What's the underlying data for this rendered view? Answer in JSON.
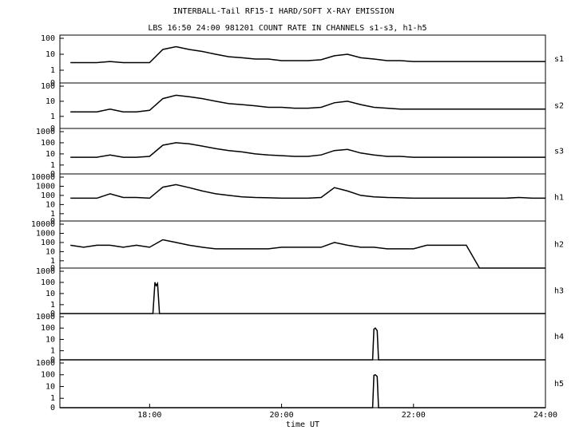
{
  "chart_data": [
    {
      "type": "line",
      "title": "INTERBALL-Tail RF15-I HARD/SOFT X-RAY EMISSION",
      "subtitle": "LBS 16:50 24:00 981201  COUNT RATE IN CHANNELS s1-s3, h1-h5",
      "label": "s1",
      "log": true,
      "color": "#000000",
      "xlim": [
        16.64,
        24
      ],
      "ylim": [
        0,
        100
      ],
      "yticks": [
        0,
        1,
        10,
        100
      ],
      "x": [
        16.8,
        17.0,
        17.2,
        17.4,
        17.6,
        17.8,
        18.0,
        18.2,
        18.4,
        18.6,
        18.8,
        19.0,
        19.2,
        19.4,
        19.6,
        19.8,
        20.0,
        20.2,
        20.4,
        20.6,
        20.8,
        21.0,
        21.2,
        21.4,
        21.6,
        21.8,
        22.0,
        22.2,
        22.4,
        22.6,
        22.8,
        23.0,
        23.2,
        23.4,
        23.6,
        23.8,
        24.0
      ],
      "values": [
        3,
        3,
        3,
        3.5,
        3,
        3,
        3,
        20,
        30,
        20,
        15,
        10,
        7,
        6,
        5,
        5,
        4,
        4,
        4,
        4.5,
        8,
        10,
        6,
        5,
        4,
        4,
        3.5,
        3.5,
        3.5,
        3.5,
        3.5,
        3.5,
        3.5,
        3.5,
        3.5,
        3.5,
        3.5
      ]
    },
    {
      "type": "line",
      "label": "s2",
      "log": true,
      "color": "#000000",
      "xlim": [
        16.64,
        24
      ],
      "ylim": [
        0,
        100
      ],
      "yticks": [
        0,
        1,
        10,
        100
      ],
      "x": [
        16.8,
        17.0,
        17.2,
        17.4,
        17.6,
        17.8,
        18.0,
        18.2,
        18.4,
        18.6,
        18.8,
        19.0,
        19.2,
        19.4,
        19.6,
        19.8,
        20.0,
        20.2,
        20.4,
        20.6,
        20.8,
        21.0,
        21.2,
        21.4,
        21.6,
        21.8,
        22.0,
        22.2,
        22.4,
        22.6,
        22.8,
        23.0,
        23.2,
        23.4,
        23.6,
        23.8,
        24.0
      ],
      "values": [
        2,
        2,
        2,
        3,
        2,
        2,
        2.5,
        15,
        25,
        20,
        15,
        10,
        7,
        6,
        5,
        4,
        4,
        3.5,
        3.5,
        4,
        8,
        10,
        6,
        4,
        3.5,
        3,
        3,
        3,
        3,
        3,
        3,
        3,
        3,
        3,
        3,
        3,
        3
      ]
    },
    {
      "type": "line",
      "label": "s3",
      "log": true,
      "color": "#000000",
      "xlim": [
        16.64,
        24
      ],
      "ylim": [
        0,
        1000
      ],
      "yticks": [
        0,
        1,
        10,
        100,
        1000
      ],
      "x": [
        16.8,
        17.0,
        17.2,
        17.4,
        17.6,
        17.8,
        18.0,
        18.2,
        18.4,
        18.6,
        18.8,
        19.0,
        19.2,
        19.4,
        19.6,
        19.8,
        20.0,
        20.2,
        20.4,
        20.6,
        20.8,
        21.0,
        21.2,
        21.4,
        21.6,
        21.8,
        22.0,
        22.2,
        22.4,
        22.6,
        22.8,
        23.0,
        23.2,
        23.4,
        23.6,
        23.8,
        24.0
      ],
      "values": [
        5,
        5,
        5,
        8,
        5,
        5,
        6,
        60,
        100,
        80,
        50,
        30,
        20,
        15,
        10,
        8,
        7,
        6,
        6,
        8,
        20,
        25,
        12,
        8,
        6,
        6,
        5,
        5,
        5,
        5,
        5,
        5,
        5,
        5,
        5,
        5,
        5
      ]
    },
    {
      "type": "line",
      "label": "h1",
      "log": true,
      "color": "#000000",
      "xlim": [
        16.64,
        24
      ],
      "ylim": [
        0,
        10000
      ],
      "yticks": [
        0,
        1,
        10,
        100,
        1000,
        10000
      ],
      "x": [
        16.8,
        17.0,
        17.2,
        17.4,
        17.6,
        17.8,
        18.0,
        18.2,
        18.4,
        18.6,
        18.8,
        19.0,
        19.2,
        19.4,
        19.6,
        19.8,
        20.0,
        20.2,
        20.4,
        20.6,
        20.8,
        21.0,
        21.2,
        21.4,
        21.6,
        21.8,
        22.0,
        22.2,
        22.4,
        22.6,
        22.8,
        23.0,
        23.2,
        23.4,
        23.6,
        23.8,
        24.0
      ],
      "values": [
        50,
        50,
        50,
        150,
        60,
        60,
        50,
        800,
        1500,
        700,
        300,
        150,
        100,
        70,
        60,
        55,
        50,
        50,
        50,
        60,
        700,
        300,
        100,
        70,
        60,
        55,
        50,
        50,
        50,
        50,
        50,
        50,
        50,
        50,
        60,
        50,
        50
      ]
    },
    {
      "type": "line",
      "label": "h2",
      "log": true,
      "color": "#000000",
      "xlim": [
        16.64,
        24
      ],
      "ylim": [
        0,
        10000
      ],
      "yticks": [
        0,
        1,
        10,
        100,
        1000,
        10000
      ],
      "x": [
        16.8,
        17.0,
        17.2,
        17.4,
        17.6,
        17.8,
        18.0,
        18.2,
        18.4,
        18.6,
        18.8,
        19.0,
        19.2,
        19.4,
        19.6,
        19.8,
        20.0,
        20.2,
        20.4,
        20.6,
        20.8,
        21.0,
        21.2,
        21.4,
        21.6,
        21.8,
        22.0,
        22.2,
        22.4,
        22.6,
        22.8,
        23.0,
        23.2,
        23.4,
        23.6,
        23.8,
        24.0
      ],
      "values": [
        50,
        30,
        50,
        50,
        30,
        50,
        30,
        200,
        100,
        50,
        30,
        20,
        20,
        20,
        20,
        20,
        30,
        30,
        30,
        30,
        100,
        50,
        30,
        30,
        20,
        20,
        20,
        50,
        50,
        50,
        50,
        0,
        0,
        0,
        0,
        0,
        0
      ]
    },
    {
      "type": "line",
      "label": "h3",
      "log": true,
      "color": "#000000",
      "xlim": [
        16.64,
        24
      ],
      "ylim": [
        0,
        1000
      ],
      "yticks": [
        0,
        1,
        10,
        100,
        1000
      ],
      "x": [
        16.64,
        18.05,
        18.08,
        18.1,
        18.12,
        18.15,
        24.0
      ],
      "values": [
        0,
        0,
        100,
        50,
        80,
        0,
        0
      ]
    },
    {
      "type": "line",
      "label": "h4",
      "log": true,
      "color": "#000000",
      "xlim": [
        16.64,
        24
      ],
      "ylim": [
        0,
        1000
      ],
      "yticks": [
        0,
        1,
        10,
        100,
        1000
      ],
      "x": [
        16.64,
        21.38,
        21.4,
        21.42,
        21.45,
        21.47,
        24.0
      ],
      "values": [
        0,
        0,
        80,
        100,
        60,
        0,
        0
      ]
    },
    {
      "type": "line",
      "label": "h5",
      "log": true,
      "color": "#000000",
      "xlim": [
        16.64,
        24
      ],
      "ylim": [
        0,
        1000
      ],
      "yticks": [
        0,
        1,
        10,
        100,
        1000
      ],
      "x": [
        16.64,
        21.38,
        21.4,
        21.42,
        21.45,
        21.47,
        24.0
      ],
      "values": [
        0,
        0,
        90,
        100,
        70,
        0,
        0
      ],
      "xlabel": "time UT",
      "xticks": [
        {
          "value": 18,
          "label": "18:00"
        },
        {
          "value": 20,
          "label": "20:00"
        },
        {
          "value": 22,
          "label": "22:00"
        },
        {
          "value": 24,
          "label": "24:00"
        }
      ]
    }
  ]
}
